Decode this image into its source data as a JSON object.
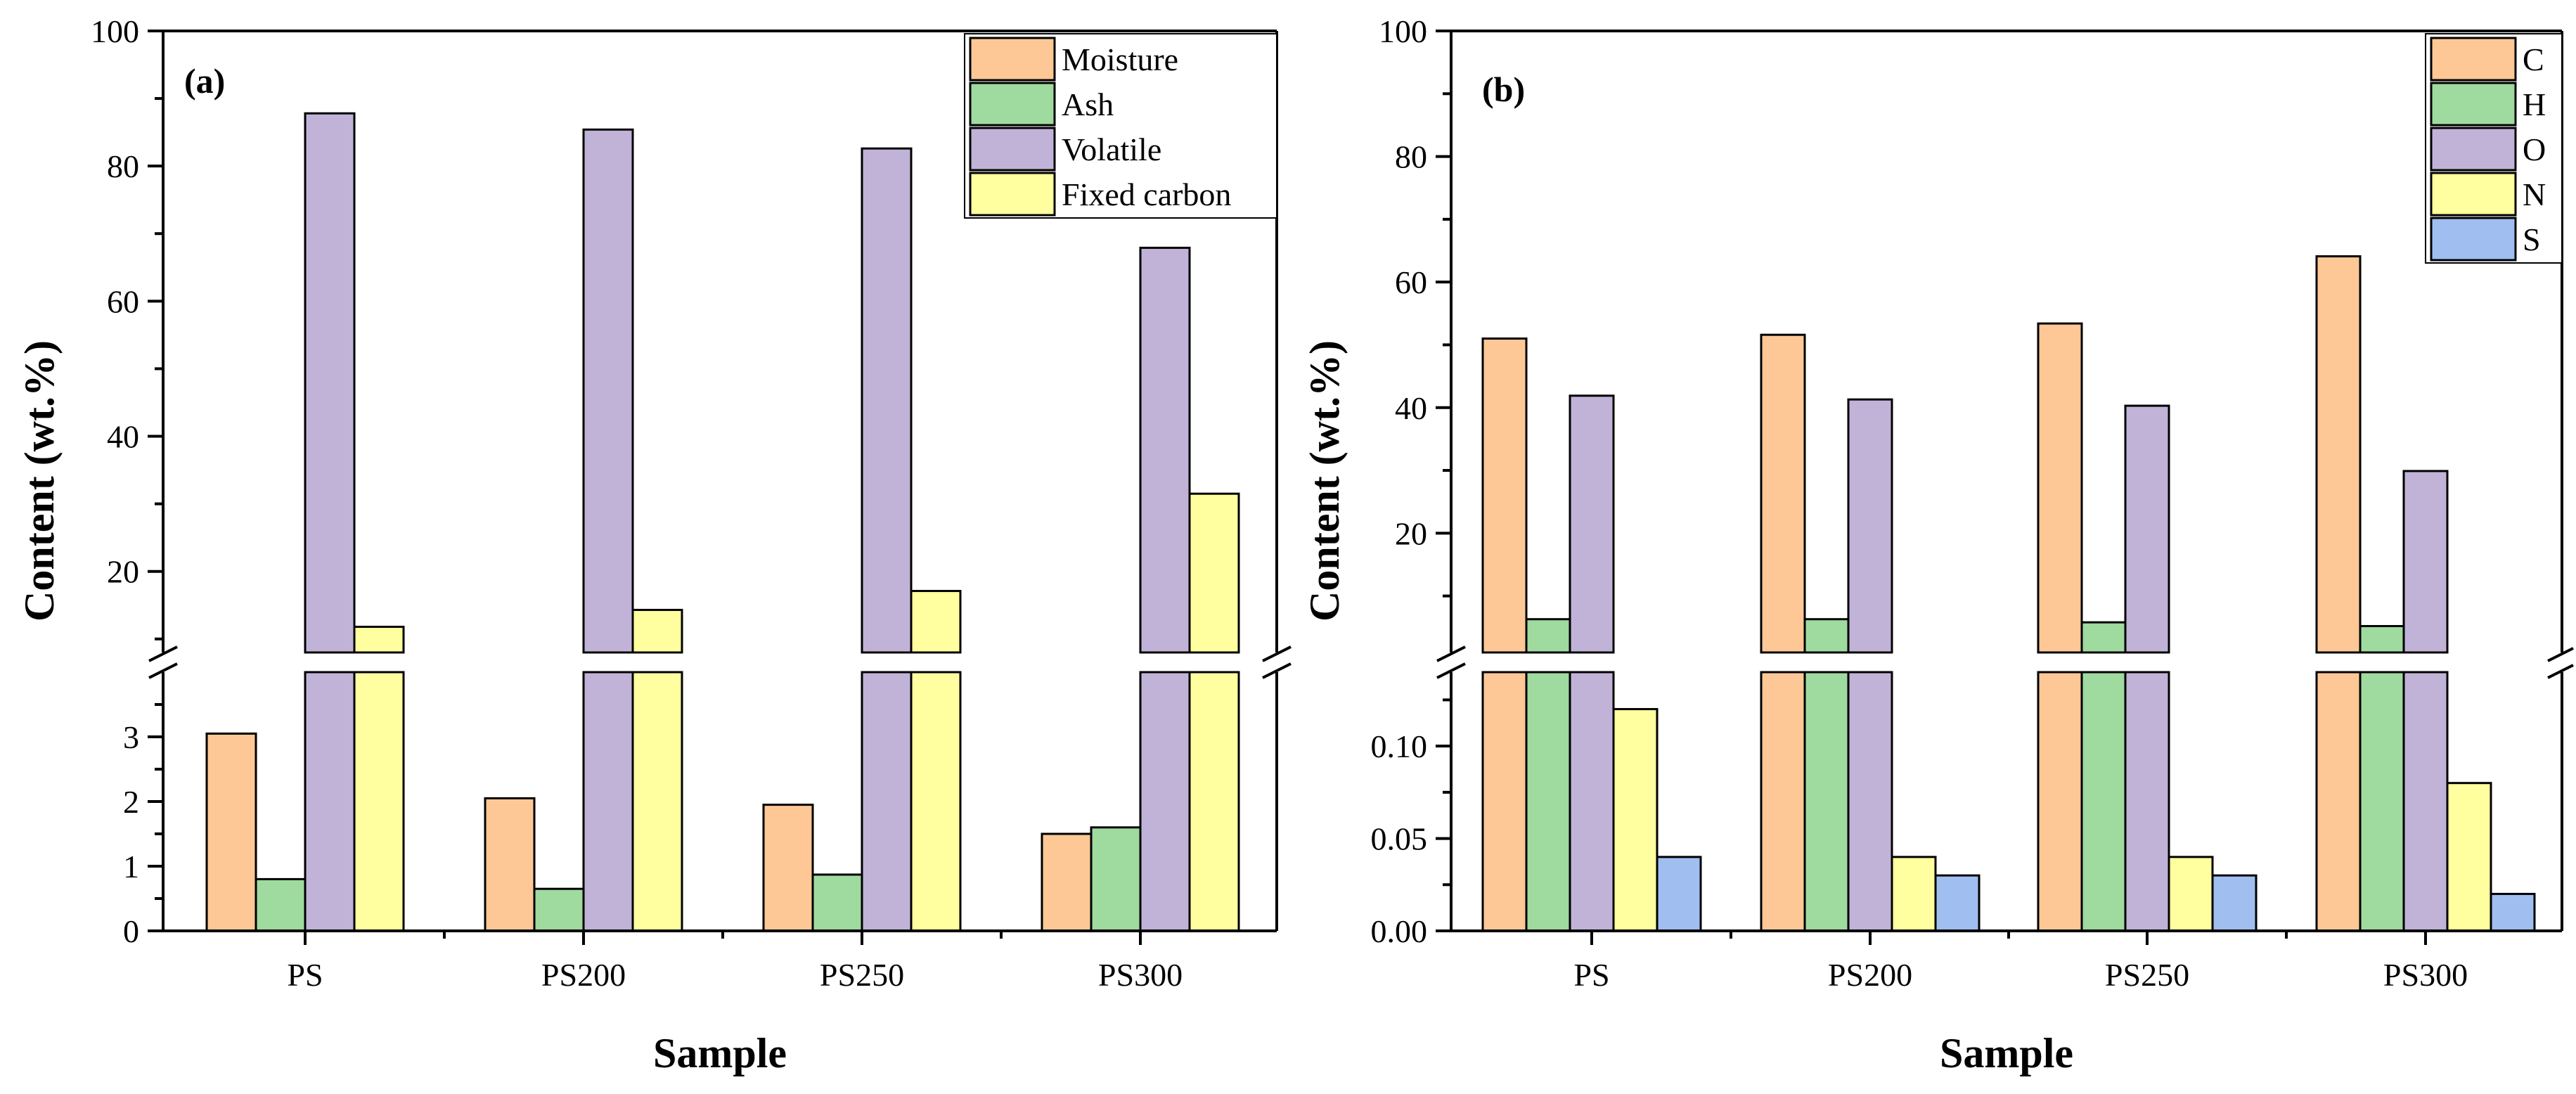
{
  "chart_data": [
    {
      "type": "bar",
      "panel_label": "(a)",
      "categories": [
        "PS",
        "PS200",
        "PS250",
        "PS300"
      ],
      "series": [
        {
          "name": "Moisture",
          "color": "#FDC896",
          "values": [
            3.05,
            2.05,
            1.95,
            1.5
          ]
        },
        {
          "name": "Ash",
          "color": "#9FDA9F",
          "values": [
            0.8,
            0.65,
            0.87,
            1.6
          ]
        },
        {
          "name": "Volatile",
          "color": "#C1B3D8",
          "values": [
            87.8,
            85.4,
            82.6,
            67.9
          ]
        },
        {
          "name": "Fixed carbon",
          "color": "#FFFF9F",
          "values": [
            11.8,
            14.3,
            17.1,
            31.5
          ]
        }
      ],
      "xlabel": "Sample",
      "ylabel": "Content (wt.%)",
      "legend_position": "top-right",
      "broken_y_axis": {
        "lower": {
          "ylim": [
            0,
            4
          ],
          "ticks": [
            0,
            1,
            2,
            3
          ],
          "tick_labels": [
            "0",
            "1",
            "2",
            "3"
          ]
        },
        "upper": {
          "ylim": [
            8,
            100
          ],
          "ticks": [
            20,
            40,
            60,
            80,
            100
          ],
          "tick_labels": [
            "20",
            "40",
            "60",
            "80",
            "100"
          ]
        }
      }
    },
    {
      "type": "bar",
      "panel_label": "(b)",
      "categories": [
        "PS",
        "PS200",
        "PS250",
        "PS300"
      ],
      "series": [
        {
          "name": "C",
          "color": "#FDC896",
          "values": [
            51.0,
            51.6,
            53.4,
            64.1
          ]
        },
        {
          "name": "H",
          "color": "#9FDA9F",
          "values": [
            6.3,
            6.3,
            5.8,
            5.2
          ]
        },
        {
          "name": "O",
          "color": "#C1B3D8",
          "values": [
            41.9,
            41.3,
            40.3,
            29.9
          ]
        },
        {
          "name": "N",
          "color": "#FFFF9F",
          "values": [
            0.12,
            0.04,
            0.04,
            0.08
          ]
        },
        {
          "name": "S",
          "color": "#A0BEF0",
          "values": [
            0.04,
            0.03,
            0.03,
            0.02
          ]
        }
      ],
      "xlabel": "Sample",
      "ylabel": "Content (wt.%)",
      "legend_position": "top-right",
      "broken_y_axis": {
        "lower": {
          "ylim": [
            0,
            0.14
          ],
          "ticks": [
            0,
            0.05,
            0.1
          ],
          "tick_labels": [
            "0.00",
            "0.05",
            "0.10"
          ]
        },
        "upper": {
          "ylim": [
            1,
            100
          ],
          "ticks": [
            20,
            40,
            60,
            80,
            100
          ],
          "tick_labels": [
            "20",
            "40",
            "60",
            "80",
            "100"
          ]
        }
      }
    }
  ]
}
